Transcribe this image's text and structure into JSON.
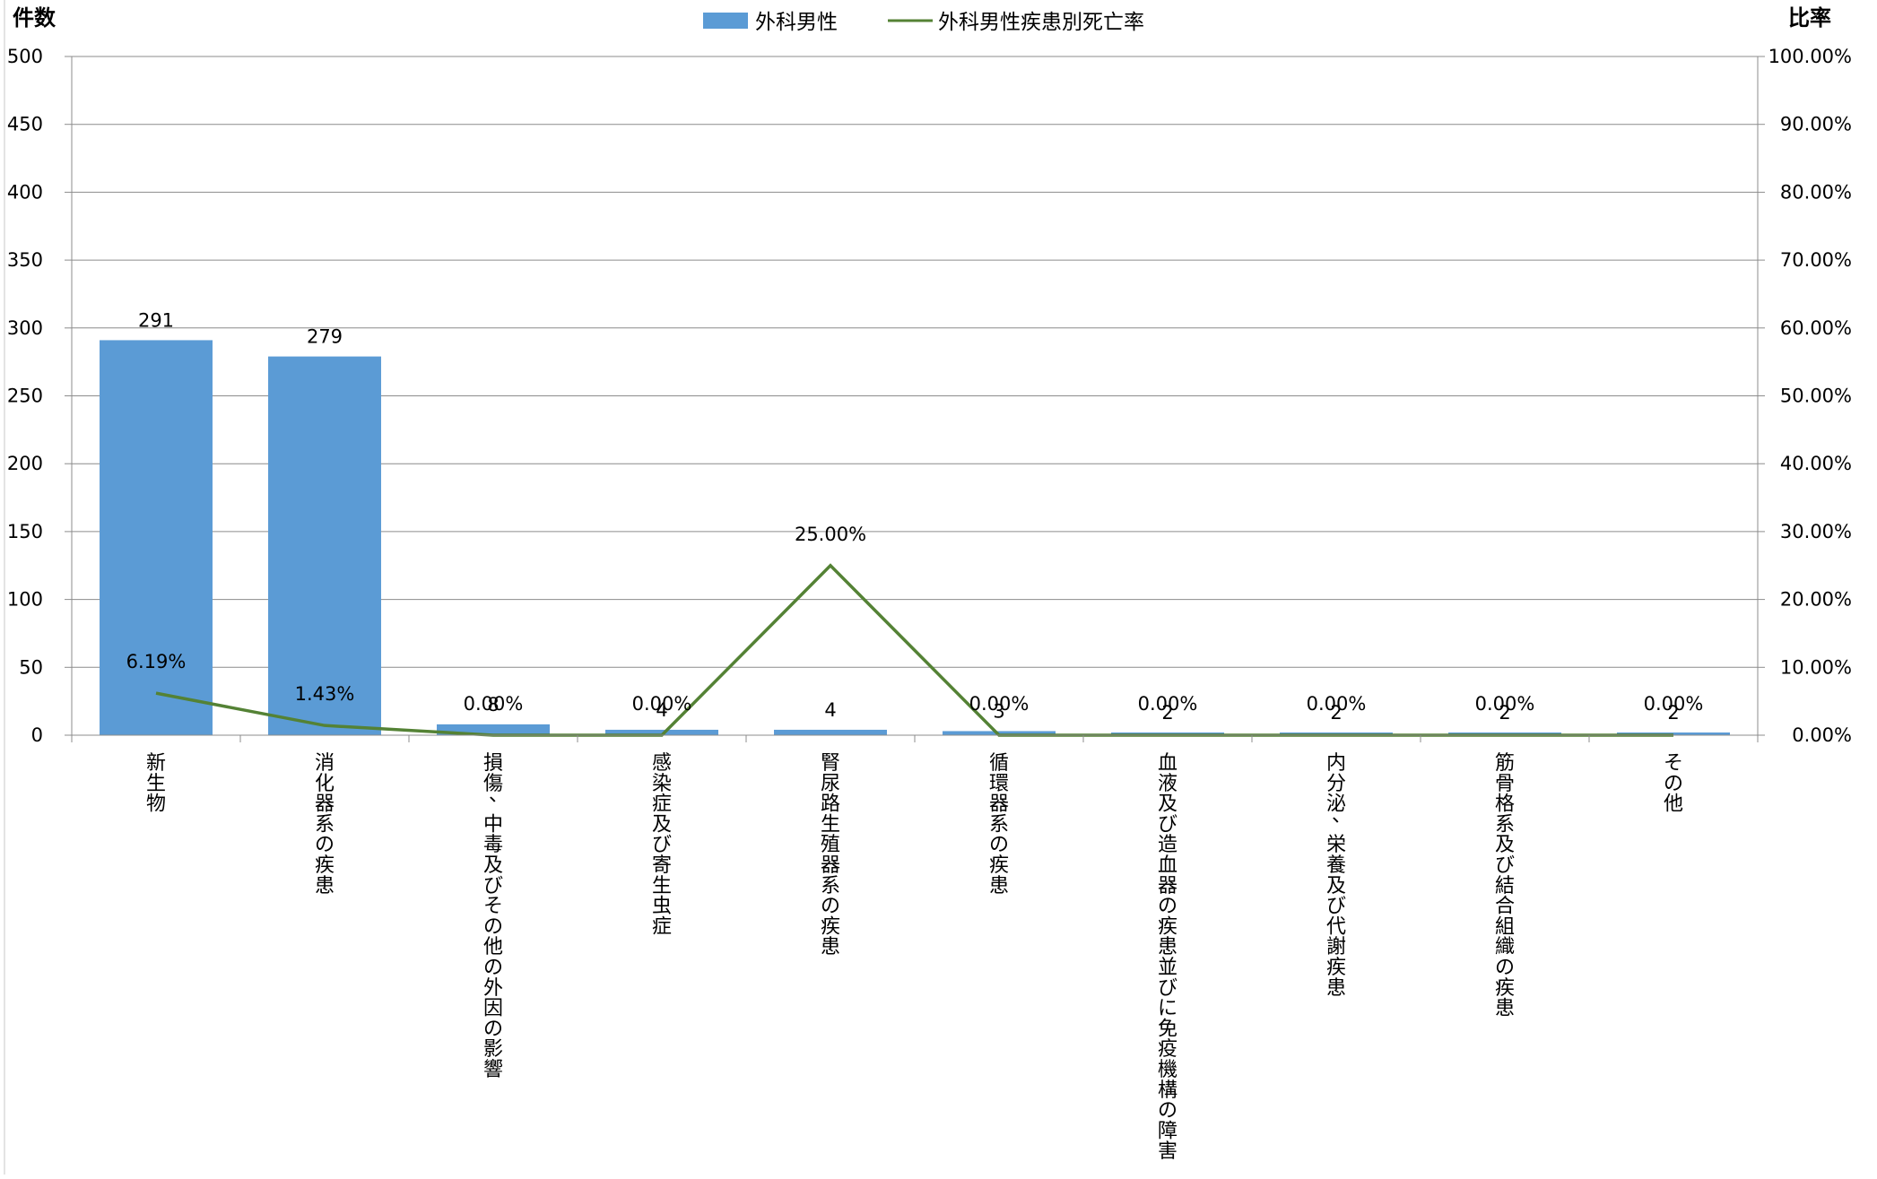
{
  "chart_data": {
    "type": "bar",
    "categories": [
      "新生物",
      "消化器系の疾患",
      "損傷、中毒及びその他の外因の影響",
      "感染症及び寄生虫症",
      "腎尿路生殖器系の疾患",
      "循環器系の疾患",
      "血液及び造血器の疾患並びに免疫機構の障害",
      "内分泌、栄養及び代謝疾患",
      "筋骨格系及び結合組織の疾患",
      "その他"
    ],
    "series": [
      {
        "name": "外科男性",
        "type": "bar",
        "axis": "left",
        "color": "#5b9bd5",
        "values": [
          291,
          279,
          8,
          4,
          4,
          3,
          2,
          2,
          2,
          2
        ],
        "labels": [
          "291",
          "279",
          "8",
          "4",
          "4",
          "3",
          "2",
          "2",
          "2",
          "2"
        ]
      },
      {
        "name": "外科男性疾患別死亡率",
        "type": "line",
        "axis": "right",
        "color": "#548235",
        "values": [
          6.19,
          1.43,
          0,
          0,
          25.0,
          0,
          0,
          0,
          0,
          0
        ],
        "labels": [
          "6.19%",
          "1.43%",
          "0.00%",
          "0.00%",
          "25.00%",
          "0.00%",
          "0.00%",
          "0.00%",
          "0.00%",
          "0.00%"
        ]
      }
    ],
    "ylabel": "件数",
    "y2label": "比率",
    "ylim": [
      0,
      500
    ],
    "yticks": [
      "0",
      "50",
      "100",
      "150",
      "200",
      "250",
      "300",
      "350",
      "400",
      "450",
      "500"
    ],
    "y2lim": [
      0,
      100
    ],
    "y2ticks": [
      "0.00%",
      "10.00%",
      "20.00%",
      "30.00%",
      "40.00%",
      "50.00%",
      "60.00%",
      "70.00%",
      "80.00%",
      "90.00%",
      "100.00%"
    ],
    "grid": true,
    "legend_position": "top-center"
  }
}
